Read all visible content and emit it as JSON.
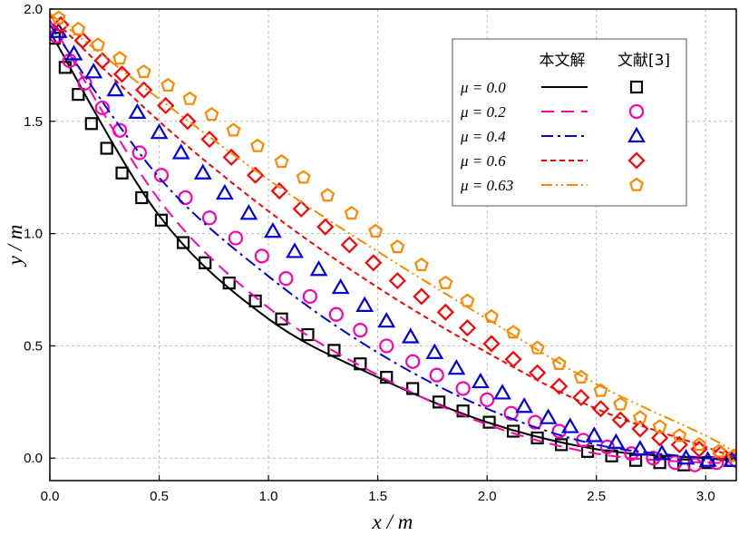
{
  "chart_data": {
    "type": "line",
    "xlabel": "x / m",
    "ylabel": "y / m",
    "xlim": [
      0,
      3.14
    ],
    "ylim": [
      -0.1,
      2.0
    ],
    "xticks": [
      "0.0",
      "0.5",
      "1.0",
      "1.5",
      "2.0",
      "2.5",
      "3.0"
    ],
    "yticks": [
      "0.0",
      "0.5",
      "1.0",
      "1.5",
      "2.0"
    ],
    "grid": true,
    "legend_position": "top-right",
    "legend_headers": {
      "line": "本文解",
      "markers": "文献[3]"
    },
    "series": [
      {
        "name": "μ = 0.0",
        "color": "#000000",
        "dash": "solid",
        "marker": "square",
        "x": [
          0.0,
          0.5,
          1.0,
          1.5,
          2.0,
          2.5,
          3.0,
          3.14
        ],
        "y": [
          1.9,
          1.08,
          0.62,
          0.36,
          0.16,
          0.04,
          0.0,
          0.0
        ],
        "marker_x": [
          0.02,
          0.07,
          0.13,
          0.19,
          0.26,
          0.33,
          0.42,
          0.51,
          0.61,
          0.71,
          0.82,
          0.94,
          1.06,
          1.18,
          1.3,
          1.42,
          1.54,
          1.66,
          1.78,
          1.89,
          2.01,
          2.12,
          2.23,
          2.34,
          2.46,
          2.57,
          2.68,
          2.79,
          2.9,
          3.01,
          3.12
        ],
        "marker_y": [
          1.87,
          1.74,
          1.62,
          1.49,
          1.38,
          1.27,
          1.16,
          1.06,
          0.96,
          0.87,
          0.78,
          0.7,
          0.62,
          0.55,
          0.48,
          0.42,
          0.36,
          0.31,
          0.25,
          0.21,
          0.16,
          0.12,
          0.09,
          0.06,
          0.03,
          0.01,
          -0.01,
          -0.02,
          -0.03,
          -0.02,
          -0.01
        ]
      },
      {
        "name": "μ = 0.2",
        "color": "#ff00aa",
        "dash": "long-dash",
        "marker": "circle",
        "x": [
          0.0,
          0.5,
          1.0,
          1.5,
          2.0,
          2.5,
          3.0,
          3.14
        ],
        "y": [
          1.95,
          1.15,
          0.67,
          0.37,
          0.15,
          0.02,
          -0.02,
          -0.01
        ],
        "marker_x": [
          0.03,
          0.09,
          0.16,
          0.24,
          0.32,
          0.41,
          0.51,
          0.62,
          0.73,
          0.85,
          0.97,
          1.08,
          1.19,
          1.31,
          1.42,
          1.54,
          1.66,
          1.77,
          1.89,
          2.0,
          2.11,
          2.22,
          2.33,
          2.44,
          2.55,
          2.66,
          2.76,
          2.86,
          2.95,
          3.05,
          3.14
        ],
        "marker_y": [
          1.88,
          1.77,
          1.67,
          1.56,
          1.46,
          1.36,
          1.26,
          1.16,
          1.07,
          0.98,
          0.9,
          0.8,
          0.72,
          0.64,
          0.57,
          0.5,
          0.43,
          0.37,
          0.31,
          0.26,
          0.2,
          0.16,
          0.12,
          0.08,
          0.05,
          0.02,
          0.0,
          -0.02,
          -0.03,
          -0.02,
          -0.01
        ]
      },
      {
        "name": "μ = 0.4",
        "color": "#0000dd",
        "dash": "dash-dot",
        "marker": "triangle",
        "x": [
          0.0,
          0.5,
          1.0,
          1.5,
          2.0,
          2.5,
          3.0,
          3.14
        ],
        "y": [
          1.93,
          1.25,
          0.81,
          0.47,
          0.22,
          0.06,
          0.0,
          -0.01
        ],
        "marker_x": [
          0.04,
          0.11,
          0.2,
          0.3,
          0.4,
          0.5,
          0.6,
          0.7,
          0.8,
          0.91,
          1.02,
          1.12,
          1.23,
          1.33,
          1.44,
          1.54,
          1.65,
          1.76,
          1.86,
          1.97,
          2.07,
          2.17,
          2.28,
          2.38,
          2.49,
          2.59,
          2.7,
          2.8,
          2.91,
          3.01,
          3.12
        ],
        "marker_y": [
          1.9,
          1.8,
          1.72,
          1.64,
          1.54,
          1.45,
          1.36,
          1.27,
          1.18,
          1.09,
          1.01,
          0.92,
          0.84,
          0.76,
          0.68,
          0.61,
          0.54,
          0.47,
          0.4,
          0.34,
          0.29,
          0.23,
          0.18,
          0.14,
          0.1,
          0.07,
          0.04,
          0.02,
          0.0,
          -0.01,
          -0.01
        ]
      },
      {
        "name": "μ = 0.6",
        "color": "#ff0000",
        "dash": "short-dash",
        "marker": "diamond",
        "x": [
          0.0,
          0.5,
          1.0,
          1.5,
          2.0,
          2.5,
          3.0,
          3.14
        ],
        "y": [
          1.97,
          1.5,
          1.1,
          0.76,
          0.47,
          0.22,
          0.05,
          0.0
        ],
        "marker_x": [
          0.05,
          0.15,
          0.24,
          0.33,
          0.43,
          0.53,
          0.63,
          0.73,
          0.83,
          0.94,
          1.05,
          1.15,
          1.26,
          1.37,
          1.48,
          1.59,
          1.7,
          1.81,
          1.91,
          2.02,
          2.12,
          2.23,
          2.33,
          2.43,
          2.52,
          2.61,
          2.7,
          2.79,
          2.88,
          2.97,
          3.07
        ],
        "marker_y": [
          1.93,
          1.86,
          1.77,
          1.71,
          1.64,
          1.57,
          1.5,
          1.42,
          1.34,
          1.26,
          1.19,
          1.11,
          1.03,
          0.95,
          0.87,
          0.79,
          0.72,
          0.65,
          0.58,
          0.51,
          0.44,
          0.38,
          0.32,
          0.27,
          0.22,
          0.17,
          0.13,
          0.09,
          0.06,
          0.04,
          0.02
        ]
      },
      {
        "name": "μ = 0.63",
        "color": "#ff8800",
        "dash": "dash-dot-dot",
        "marker": "pentagon",
        "x": [
          0.0,
          0.5,
          1.0,
          1.5,
          2.0,
          2.5,
          3.0,
          3.14
        ],
        "y": [
          1.98,
          1.6,
          1.24,
          0.92,
          0.62,
          0.33,
          0.1,
          0.02
        ],
        "marker_x": [
          0.04,
          0.13,
          0.22,
          0.32,
          0.43,
          0.54,
          0.64,
          0.74,
          0.84,
          0.95,
          1.06,
          1.16,
          1.27,
          1.38,
          1.49,
          1.59,
          1.7,
          1.81,
          1.91,
          2.02,
          2.12,
          2.23,
          2.33,
          2.43,
          2.52,
          2.61,
          2.7,
          2.79,
          2.88,
          2.97,
          3.06,
          3.13
        ],
        "marker_y": [
          1.96,
          1.91,
          1.84,
          1.78,
          1.72,
          1.66,
          1.6,
          1.53,
          1.46,
          1.39,
          1.32,
          1.25,
          1.17,
          1.09,
          1.01,
          0.94,
          0.86,
          0.78,
          0.7,
          0.63,
          0.56,
          0.49,
          0.42,
          0.36,
          0.3,
          0.24,
          0.18,
          0.14,
          0.1,
          0.06,
          0.03,
          0.01
        ]
      }
    ]
  }
}
